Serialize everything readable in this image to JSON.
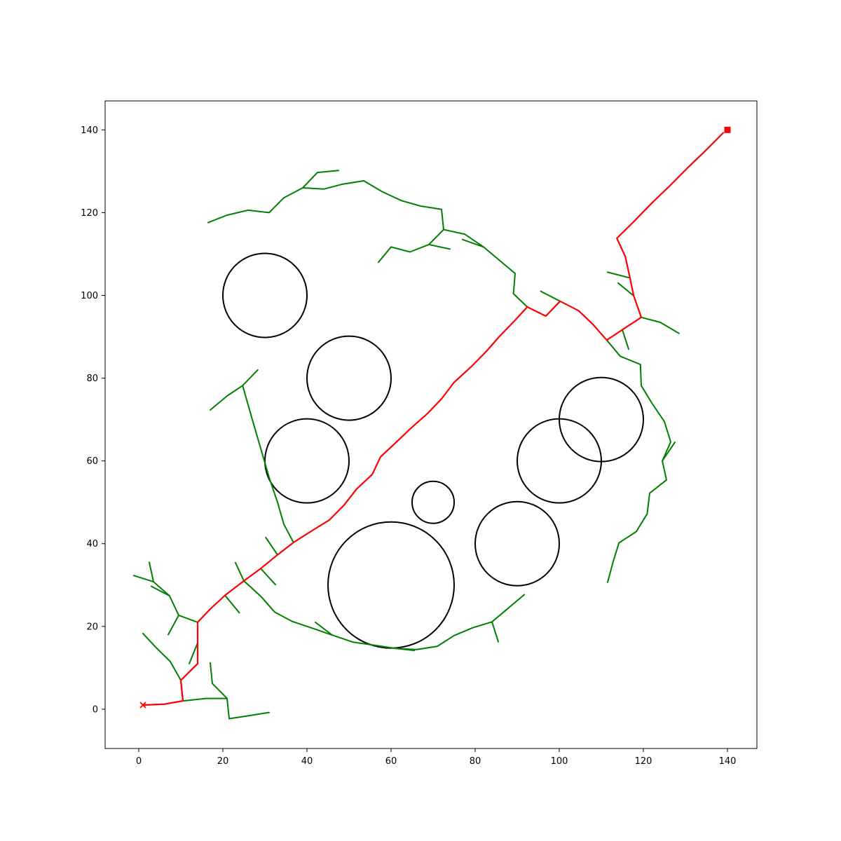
{
  "chart_data": {
    "type": "line",
    "title": "",
    "xlabel": "",
    "ylabel": "",
    "xlim": [
      -8,
      147
    ],
    "ylim": [
      -9.5,
      147
    ],
    "x_ticks": [
      0,
      20,
      40,
      60,
      80,
      100,
      120,
      140
    ],
    "y_ticks": [
      0,
      20,
      40,
      60,
      80,
      100,
      120,
      140
    ],
    "x_tick_labels": [
      "0",
      "20",
      "40",
      "60",
      "80",
      "100",
      "120",
      "140"
    ],
    "y_tick_labels": [
      "0",
      "20",
      "40",
      "60",
      "80",
      "100",
      "120",
      "140"
    ],
    "grid": false,
    "colors": {
      "obstacle": "#000000",
      "tree": "#008000",
      "path": "#ff0000",
      "axes": "#000000"
    },
    "obstacles": [
      {
        "cx": 30,
        "cy": 100,
        "r": 10
      },
      {
        "cx": 50,
        "cy": 80,
        "r": 10
      },
      {
        "cx": 40,
        "cy": 60,
        "r": 10
      },
      {
        "cx": 70,
        "cy": 50,
        "r": 5
      },
      {
        "cx": 60,
        "cy": 30,
        "r": 15
      },
      {
        "cx": 90,
        "cy": 40,
        "r": 10
      },
      {
        "cx": 100,
        "cy": 60,
        "r": 10
      },
      {
        "cx": 110,
        "cy": 70,
        "r": 10
      }
    ],
    "start": {
      "x": 1,
      "y": 1,
      "marker": "x"
    },
    "goal": {
      "x": 140,
      "y": 140,
      "marker": "square"
    },
    "tree_edges": [
      [
        [
          1,
          1
        ],
        [
          6,
          1.2
        ],
        [
          10.5,
          2
        ],
        [
          16,
          2.6
        ],
        [
          21,
          2.6
        ],
        [
          21.5,
          -2.3
        ],
        [
          26,
          -1.6
        ],
        [
          31,
          -0.8
        ]
      ],
      [
        [
          10.5,
          2
        ],
        [
          10,
          7
        ],
        [
          7.5,
          11.5
        ],
        [
          4,
          15
        ],
        [
          1,
          18.3
        ]
      ],
      [
        [
          10,
          7
        ],
        [
          14,
          11
        ],
        [
          14,
          16
        ],
        [
          12,
          11
        ]
      ],
      [
        [
          21,
          2.6
        ],
        [
          17.5,
          6.2
        ],
        [
          17,
          11.2
        ]
      ],
      [
        [
          14,
          21
        ],
        [
          9.5,
          22.7
        ],
        [
          7,
          18
        ]
      ],
      [
        [
          9.5,
          22.7
        ],
        [
          7.3,
          27.4
        ],
        [
          3,
          29.7
        ]
      ],
      [
        [
          7.3,
          27.4
        ],
        [
          3.5,
          30.8
        ],
        [
          2.5,
          35.5
        ]
      ],
      [
        [
          3.5,
          30.8
        ],
        [
          -1.2,
          32.3
        ]
      ],
      [
        [
          20.5,
          27.5
        ],
        [
          23.9,
          23.3
        ]
      ],
      [
        [
          25,
          31
        ],
        [
          23,
          35.4
        ]
      ],
      [
        [
          25,
          31
        ],
        [
          29,
          27.3
        ],
        [
          32.3,
          23.5
        ],
        [
          36.5,
          21.2
        ],
        [
          41.5,
          19.5
        ],
        [
          46,
          17.9
        ],
        [
          51,
          16.2
        ],
        [
          55,
          15.6
        ],
        [
          61,
          14.7
        ],
        [
          65.5,
          14.2
        ]
      ],
      [
        [
          61,
          14.7
        ],
        [
          66,
          14.4
        ],
        [
          71,
          15.2
        ],
        [
          75,
          17.8
        ],
        [
          79.5,
          19.7
        ],
        [
          84,
          21.1
        ],
        [
          85.5,
          16.3
        ]
      ],
      [
        [
          84,
          21.1
        ],
        [
          91.7,
          27.7
        ]
      ],
      [
        [
          46,
          17.9
        ],
        [
          42,
          21
        ]
      ],
      [
        [
          29,
          34
        ],
        [
          32.5,
          30.1
        ]
      ],
      [
        [
          33,
          37.3
        ],
        [
          30.2,
          41.5
        ]
      ],
      [
        [
          36.8,
          40.3
        ],
        [
          34.5,
          44.7
        ],
        [
          33,
          50
        ],
        [
          31,
          56
        ],
        [
          29,
          63
        ],
        [
          27,
          70
        ],
        [
          24.7,
          78.2
        ],
        [
          21,
          75.7
        ],
        [
          17,
          72.3
        ]
      ],
      [
        [
          24.7,
          78.2
        ],
        [
          28.3,
          82
        ]
      ],
      [
        [
          92.4,
          97.2
        ],
        [
          89.1,
          100.4
        ],
        [
          89.5,
          105.3
        ],
        [
          82,
          111.7
        ],
        [
          77.5,
          114.8
        ],
        [
          72.5,
          115.9
        ],
        [
          72,
          120.8
        ],
        [
          67,
          121.6
        ],
        [
          62.5,
          122.9
        ],
        [
          58,
          125
        ],
        [
          53.5,
          127.7
        ],
        [
          48.5,
          126.9
        ],
        [
          44,
          125.7
        ],
        [
          39,
          126
        ],
        [
          34.5,
          123.6
        ],
        [
          31,
          120
        ],
        [
          26,
          120.6
        ],
        [
          21,
          119.4
        ],
        [
          16.5,
          117.6
        ]
      ],
      [
        [
          39,
          126
        ],
        [
          42.5,
          129.7
        ],
        [
          47.5,
          130.2
        ]
      ],
      [
        [
          72.5,
          115.9
        ],
        [
          69,
          112.3
        ],
        [
          64.5,
          110.5
        ],
        [
          60,
          111.7
        ],
        [
          57,
          108
        ]
      ],
      [
        [
          69,
          112.3
        ],
        [
          74,
          111.2
        ]
      ],
      [
        [
          82,
          111.7
        ],
        [
          77,
          113.5
        ]
      ],
      [
        [
          100.2,
          98.6
        ],
        [
          95.6,
          101
        ]
      ],
      [
        [
          111.3,
          89.2
        ],
        [
          114.5,
          85.3
        ],
        [
          119.3,
          83.3
        ],
        [
          119.5,
          78.2
        ],
        [
          122,
          74
        ],
        [
          125,
          69.5
        ],
        [
          126.5,
          64.6
        ],
        [
          124.5,
          60
        ],
        [
          125.5,
          55.4
        ],
        [
          121.5,
          52.2
        ],
        [
          120.9,
          47.2
        ],
        [
          118.3,
          42.9
        ],
        [
          114.2,
          40.2
        ],
        [
          112.8,
          35.6
        ],
        [
          111.5,
          30.7
        ]
      ],
      [
        [
          124.5,
          60
        ],
        [
          127.5,
          64.5
        ]
      ],
      [
        [
          115,
          91.7
        ],
        [
          116.5,
          87
        ]
      ],
      [
        [
          119.5,
          94.7
        ],
        [
          124,
          93.5
        ],
        [
          128.5,
          90.8
        ]
      ],
      [
        [
          117.7,
          99.9
        ],
        [
          114,
          103
        ]
      ],
      [
        [
          116.5,
          104.3
        ],
        [
          111.5,
          105.6
        ]
      ]
    ],
    "path": [
      [
        1,
        1
      ],
      [
        6,
        1.2
      ],
      [
        10.5,
        2
      ],
      [
        10,
        7
      ],
      [
        14,
        11
      ],
      [
        14,
        21
      ],
      [
        17,
        24.2
      ],
      [
        20.5,
        27.5
      ],
      [
        25,
        31
      ],
      [
        29,
        34
      ],
      [
        33,
        37.3
      ],
      [
        36.8,
        40.3
      ],
      [
        41,
        43
      ],
      [
        45.3,
        45.7
      ],
      [
        48.8,
        49.3
      ],
      [
        51.8,
        53.2
      ],
      [
        55.5,
        56.7
      ],
      [
        57.5,
        61
      ],
      [
        61,
        64.3
      ],
      [
        64.5,
        67.7
      ],
      [
        68.7,
        71.5
      ],
      [
        72,
        75
      ],
      [
        75,
        79
      ],
      [
        79,
        82.7
      ],
      [
        82.5,
        86.3
      ],
      [
        85.7,
        90
      ],
      [
        89.5,
        94
      ],
      [
        92.4,
        97.2
      ],
      [
        96.8,
        95
      ],
      [
        100.2,
        98.6
      ],
      [
        104.6,
        96.3
      ],
      [
        108,
        93
      ],
      [
        111.3,
        89.2
      ],
      [
        115,
        91.7
      ],
      [
        119.5,
        94.7
      ],
      [
        117.7,
        99.9
      ],
      [
        116.8,
        104.3
      ],
      [
        115.7,
        109.4
      ],
      [
        113.7,
        113.8
      ],
      [
        117.7,
        117.8
      ],
      [
        122,
        122.3
      ],
      [
        126.3,
        126.5
      ],
      [
        130.5,
        130.8
      ],
      [
        134.8,
        135
      ],
      [
        139,
        139.3
      ]
    ]
  }
}
